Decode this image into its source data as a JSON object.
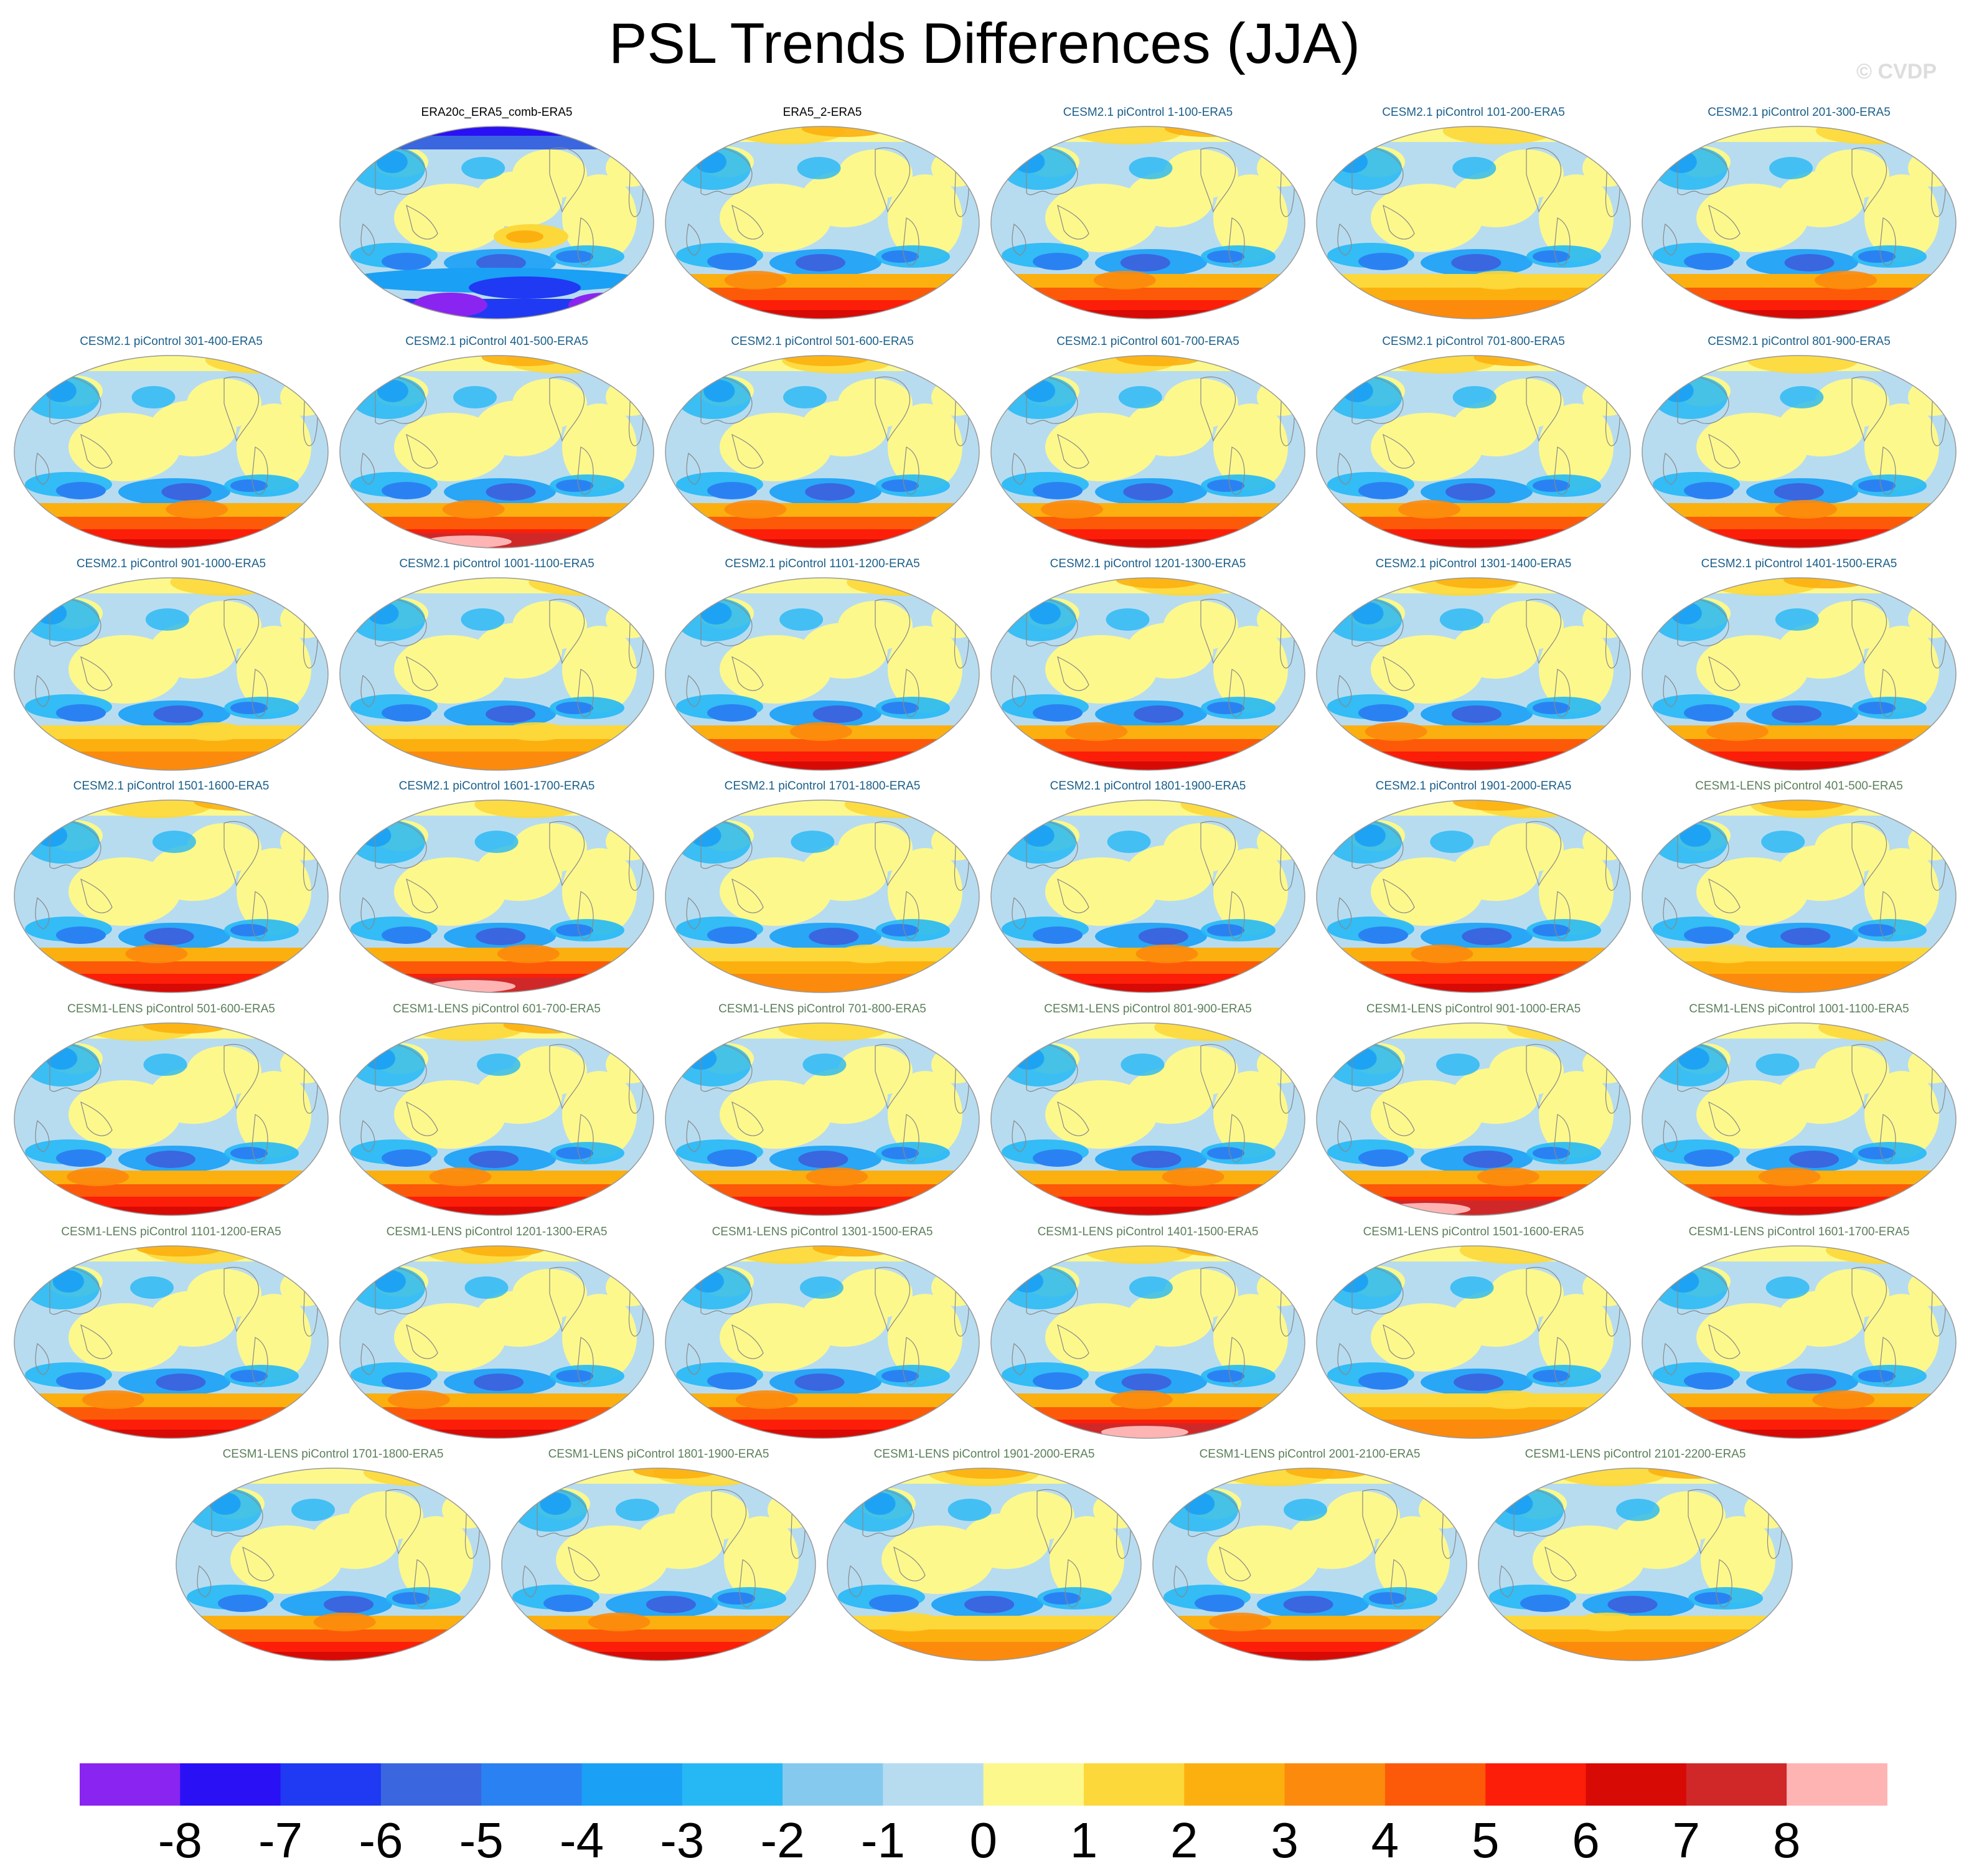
{
  "title": "PSL Trends Differences (JJA)",
  "watermark": "© CVDP",
  "panels": [
    {
      "label": "ERA20c_ERA5_comb-ERA5",
      "group": "obs",
      "pattern": "obs"
    },
    {
      "label": "ERA5_2-ERA5",
      "group": "obs",
      "pattern": "std"
    },
    {
      "label": "CESM2.1 piControl 1-100-ERA5",
      "group": "cesm2",
      "pattern": "std"
    },
    {
      "label": "CESM2.1 piControl 101-200-ERA5",
      "group": "cesm2",
      "pattern": "weak"
    },
    {
      "label": "CESM2.1 piControl 201-300-ERA5",
      "group": "cesm2",
      "pattern": "std"
    },
    {
      "label": "CESM2.1 piControl 301-400-ERA5",
      "group": "cesm2",
      "pattern": "std"
    },
    {
      "label": "CESM2.1 piControl 401-500-ERA5",
      "group": "cesm2",
      "pattern": "strong"
    },
    {
      "label": "CESM2.1 piControl 501-600-ERA5",
      "group": "cesm2",
      "pattern": "std"
    },
    {
      "label": "CESM2.1 piControl 601-700-ERA5",
      "group": "cesm2",
      "pattern": "std"
    },
    {
      "label": "CESM2.1 piControl 701-800-ERA5",
      "group": "cesm2",
      "pattern": "std"
    },
    {
      "label": "CESM2.1 piControl 801-900-ERA5",
      "group": "cesm2",
      "pattern": "std"
    },
    {
      "label": "CESM2.1 piControl 901-1000-ERA5",
      "group": "cesm2",
      "pattern": "weak"
    },
    {
      "label": "CESM2.1 piControl 1001-1100-ERA5",
      "group": "cesm2",
      "pattern": "weak"
    },
    {
      "label": "CESM2.1 piControl 1101-1200-ERA5",
      "group": "cesm2",
      "pattern": "std"
    },
    {
      "label": "CESM2.1 piControl 1201-1300-ERA5",
      "group": "cesm2",
      "pattern": "std"
    },
    {
      "label": "CESM2.1 piControl 1301-1400-ERA5",
      "group": "cesm2",
      "pattern": "std"
    },
    {
      "label": "CESM2.1 piControl 1401-1500-ERA5",
      "group": "cesm2",
      "pattern": "std"
    },
    {
      "label": "CESM2.1 piControl 1501-1600-ERA5",
      "group": "cesm2",
      "pattern": "std"
    },
    {
      "label": "CESM2.1 piControl 1601-1700-ERA5",
      "group": "cesm2",
      "pattern": "strong"
    },
    {
      "label": "CESM2.1 piControl 1701-1800-ERA5",
      "group": "cesm2",
      "pattern": "weak"
    },
    {
      "label": "CESM2.1 piControl 1801-1900-ERA5",
      "group": "cesm2",
      "pattern": "std"
    },
    {
      "label": "CESM2.1 piControl 1901-2000-ERA5",
      "group": "cesm2",
      "pattern": "std"
    },
    {
      "label": "CESM1-LENS piControl 401-500-ERA5",
      "group": "lens",
      "pattern": "weak"
    },
    {
      "label": "CESM1-LENS piControl 501-600-ERA5",
      "group": "lens",
      "pattern": "std"
    },
    {
      "label": "CESM1-LENS piControl 601-700-ERA5",
      "group": "lens",
      "pattern": "std"
    },
    {
      "label": "CESM1-LENS piControl 701-800-ERA5",
      "group": "lens",
      "pattern": "std"
    },
    {
      "label": "CESM1-LENS piControl 801-900-ERA5",
      "group": "lens",
      "pattern": "std"
    },
    {
      "label": "CESM1-LENS piControl 901-1000-ERA5",
      "group": "lens",
      "pattern": "strong"
    },
    {
      "label": "CESM1-LENS piControl 1001-1100-ERA5",
      "group": "lens",
      "pattern": "std"
    },
    {
      "label": "CESM1-LENS piControl 1101-1200-ERA5",
      "group": "lens",
      "pattern": "std"
    },
    {
      "label": "CESM1-LENS piControl 1201-1300-ERA5",
      "group": "lens",
      "pattern": "std"
    },
    {
      "label": "CESM1-LENS piControl 1301-1500-ERA5",
      "group": "lens",
      "pattern": "std"
    },
    {
      "label": "CESM1-LENS piControl 1401-1500-ERA5",
      "group": "lens",
      "pattern": "strong"
    },
    {
      "label": "CESM1-LENS piControl 1501-1600-ERA5",
      "group": "lens",
      "pattern": "weak"
    },
    {
      "label": "CESM1-LENS piControl 1601-1700-ERA5",
      "group": "lens",
      "pattern": "std"
    },
    {
      "label": "CESM1-LENS piControl 1701-1800-ERA5",
      "group": "lens",
      "pattern": "std"
    },
    {
      "label": "CESM1-LENS piControl 1801-1900-ERA5",
      "group": "lens",
      "pattern": "std"
    },
    {
      "label": "CESM1-LENS piControl 1901-2000-ERA5",
      "group": "lens",
      "pattern": "weak"
    },
    {
      "label": "CESM1-LENS piControl 2001-2100-ERA5",
      "group": "lens",
      "pattern": "std"
    },
    {
      "label": "CESM1-LENS piControl 2101-2200-ERA5",
      "group": "lens",
      "pattern": "weak"
    }
  ],
  "label_colors": {
    "obs": "#000000",
    "cesm2": "#1a5f8a",
    "lens": "#5b7f5a"
  },
  "colorbar": {
    "labels": [
      "-8",
      "-7",
      "-6",
      "-5",
      "-4",
      "-3",
      "-2",
      "-1",
      "0",
      "1",
      "2",
      "3",
      "4",
      "5",
      "6",
      "7",
      "8"
    ],
    "colors": [
      "#8a24f0",
      "#2a10f5",
      "#1f3af2",
      "#3a66e0",
      "#2a82f2",
      "#1aa0f5",
      "#25b8f5",
      "#86c9ee",
      "#b7dcf0",
      "#fcf88c",
      "#fcd83a",
      "#fcb00f",
      "#fc8a0c",
      "#fc5a08",
      "#fc1e08",
      "#d80a05",
      "#d02828",
      "#ffb4b4"
    ]
  },
  "map_colors": {
    "background": "#b7dcf0",
    "coast": "#888888",
    "border": "#999999"
  }
}
